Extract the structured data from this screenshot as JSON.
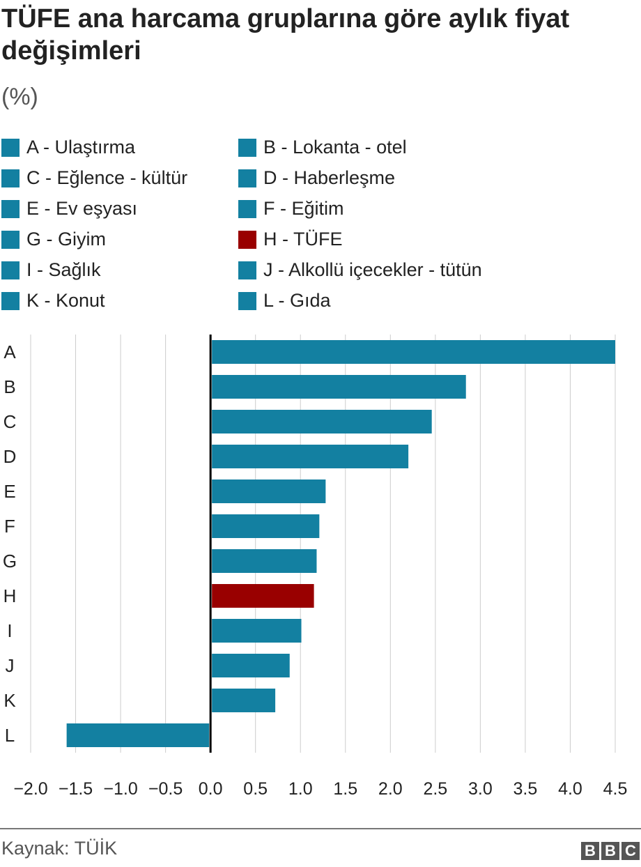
{
  "title": "TÜFE ana harcama gruplarına göre aylık fiyat değişimleri",
  "subtitle": "(%)",
  "source": "Kaynak: TÜİK",
  "logo": "BBC",
  "colors": {
    "default": "#1380a1",
    "highlight": "#990000",
    "grid": "#cccccc",
    "zero": "#000000"
  },
  "legend": [
    {
      "label": "A - Ulaştırma",
      "color": "#1380a1"
    },
    {
      "label": "B - Lokanta - otel",
      "color": "#1380a1"
    },
    {
      "label": "C - Eğlence - kültür",
      "color": "#1380a1"
    },
    {
      "label": "D - Haberleşme",
      "color": "#1380a1"
    },
    {
      "label": "E - Ev eşyası",
      "color": "#1380a1"
    },
    {
      "label": "F - Eğitim",
      "color": "#1380a1"
    },
    {
      "label": "G - Giyim",
      "color": "#1380a1"
    },
    {
      "label": "H - TÜFE",
      "color": "#990000"
    },
    {
      "label": "I - Sağlık",
      "color": "#1380a1"
    },
    {
      "label": "J - Alkollü içecekler - tütün",
      "color": "#1380a1"
    },
    {
      "label": "K - Konut",
      "color": "#1380a1"
    },
    {
      "label": "L - Gıda",
      "color": "#1380a1"
    }
  ],
  "chart_data": {
    "type": "bar",
    "orientation": "horizontal",
    "title": "TÜFE ana harcama gruplarına göre aylık fiyat değişimleri",
    "ylabel": "(%)",
    "categories": [
      "A",
      "B",
      "C",
      "D",
      "E",
      "F",
      "G",
      "H",
      "I",
      "J",
      "K",
      "L"
    ],
    "values": [
      4.5,
      2.84,
      2.46,
      2.2,
      1.28,
      1.21,
      1.18,
      1.15,
      1.01,
      0.88,
      0.72,
      -1.6
    ],
    "highlight": "H",
    "xlim": [
      -2.0,
      4.5
    ],
    "xticks": [
      "−2.0",
      "−1.5",
      "−1.0",
      "−0.5",
      "0.0",
      "0.5",
      "1.0",
      "1.5",
      "2.0",
      "2.5",
      "3.0",
      "3.5",
      "4.0",
      "4.5"
    ],
    "grid": true
  }
}
